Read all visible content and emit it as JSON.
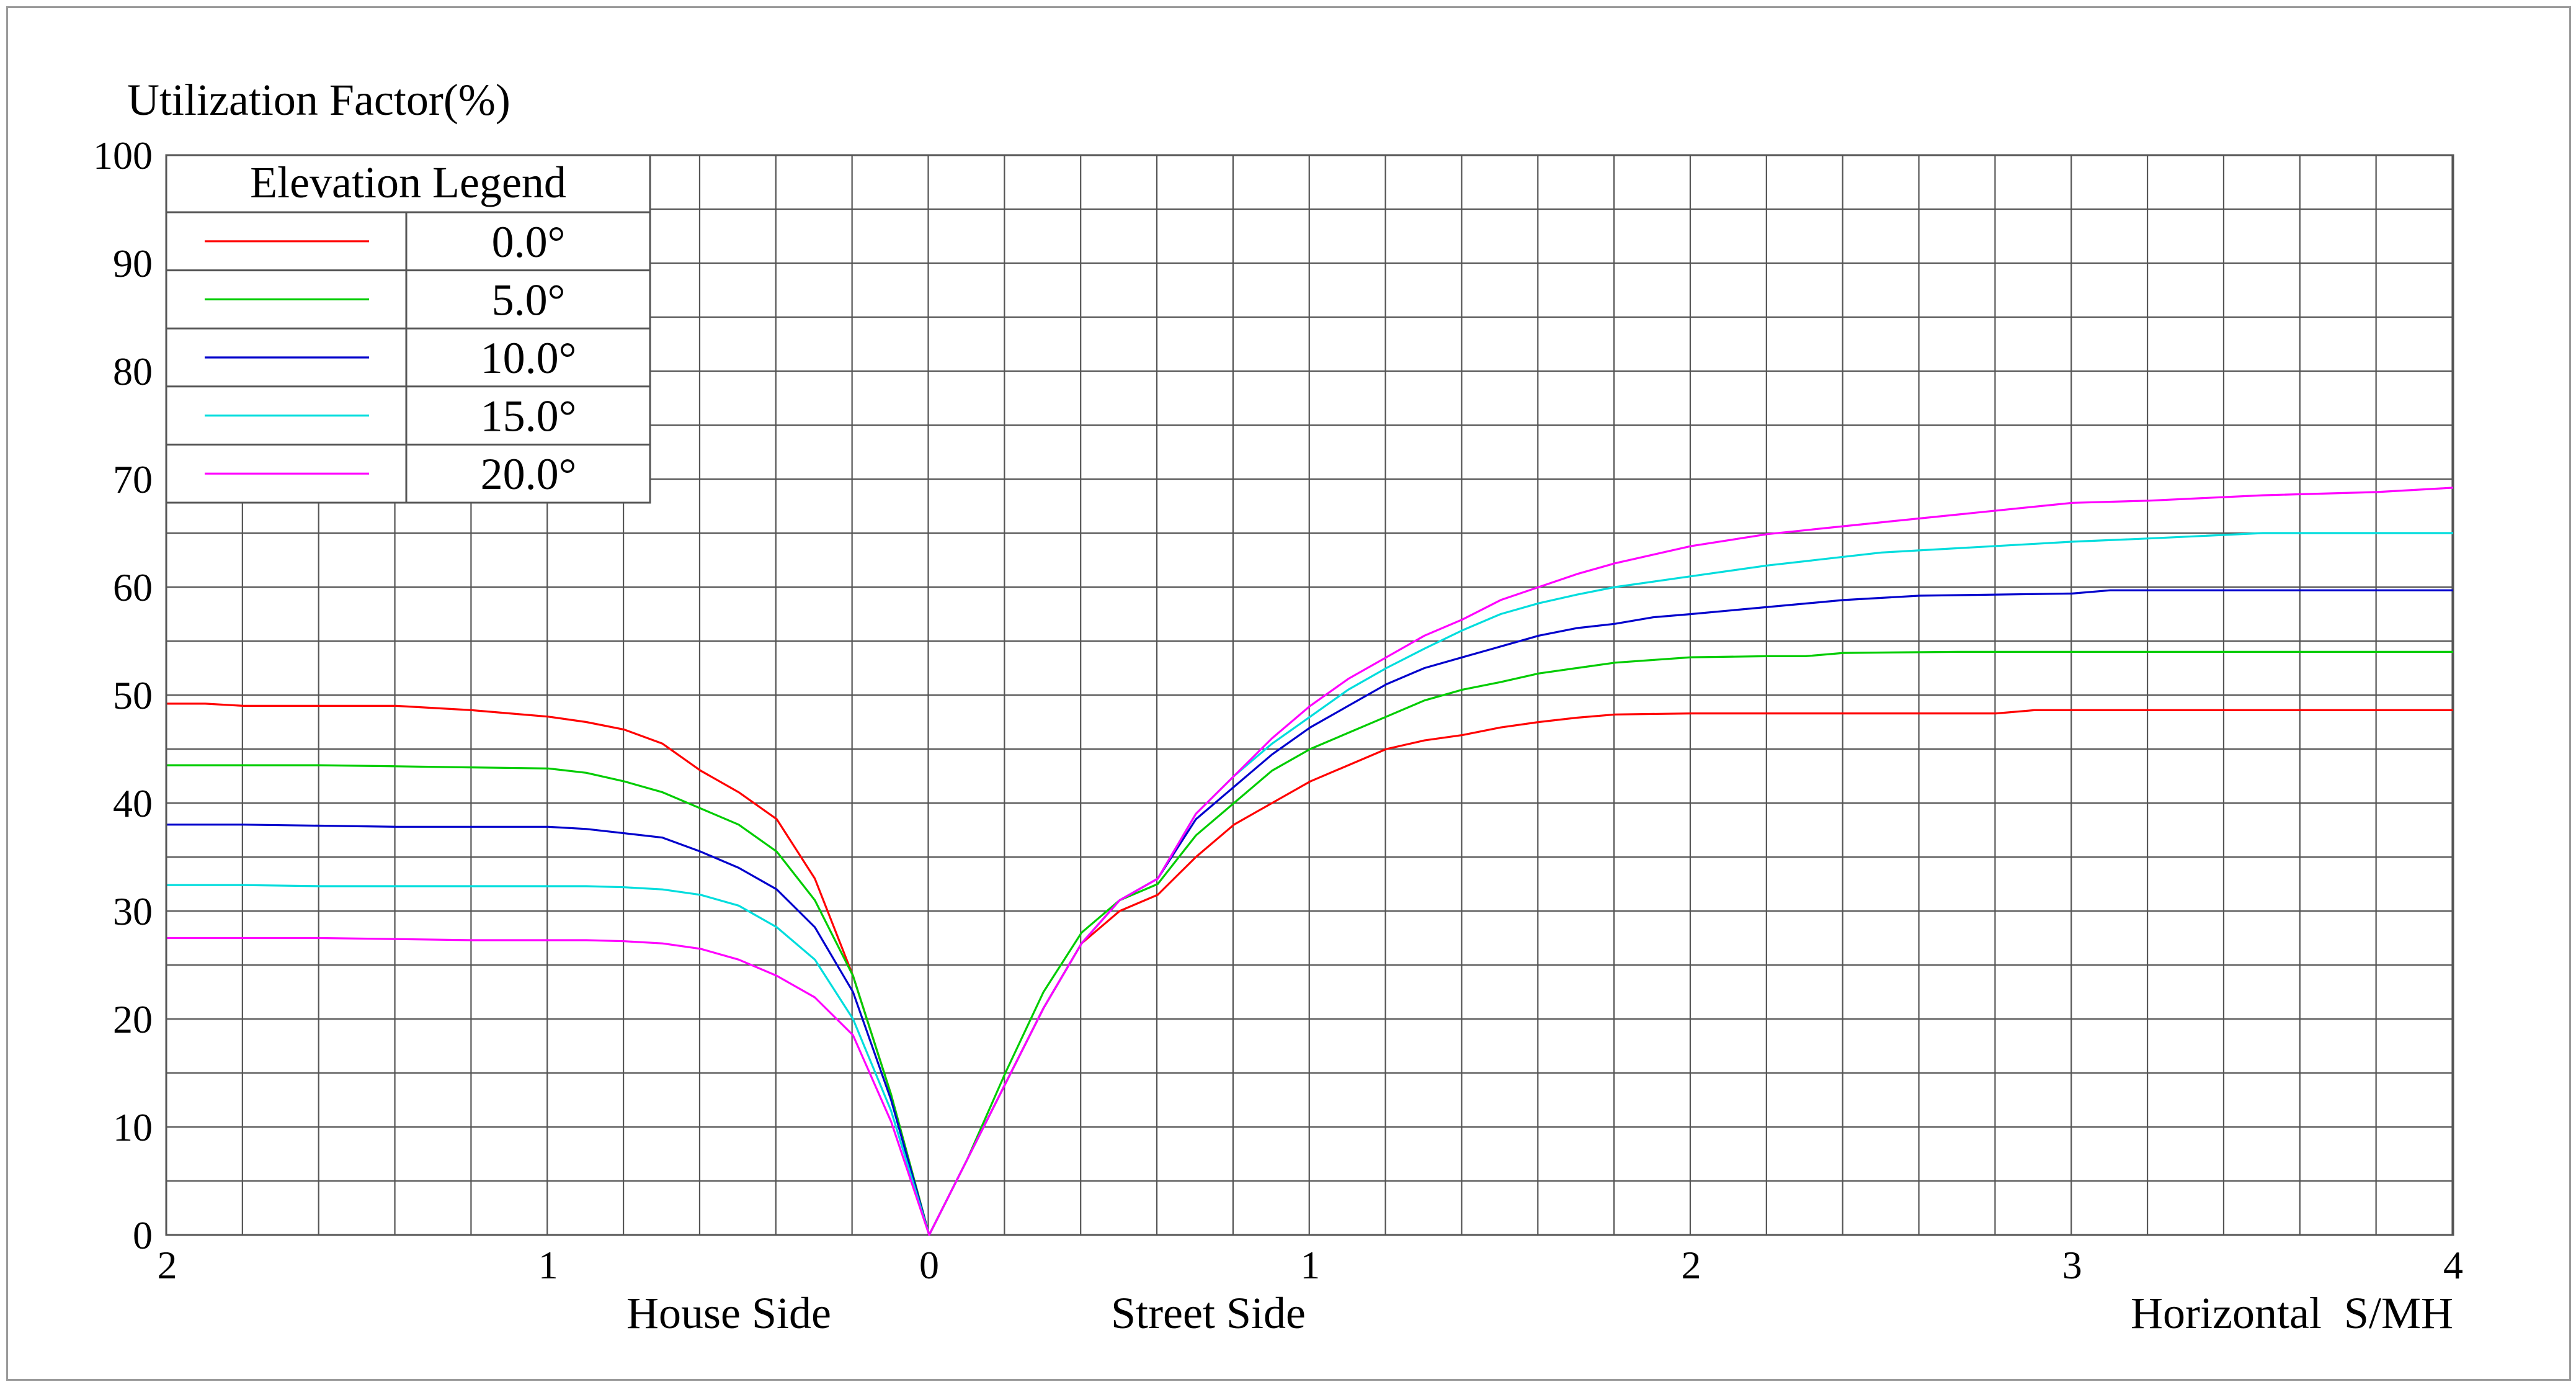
{
  "chart_data": {
    "type": "line",
    "ylabel": "Utilization Factor(%)",
    "ylim": [
      0,
      100
    ],
    "yticks": [
      "0",
      "10",
      "20",
      "30",
      "40",
      "50",
      "60",
      "70",
      "80",
      "90",
      "100"
    ],
    "x_left": {
      "label": "House Side",
      "range": [
        0,
        2
      ],
      "ticks": [
        "2",
        "1",
        "0"
      ]
    },
    "x_right": {
      "labels": [
        "Street Side",
        "Horizontal  S/MH"
      ],
      "range": [
        0,
        4
      ],
      "ticks": [
        "0",
        "1",
        "2",
        "3",
        "4"
      ]
    },
    "grid": true,
    "legend": {
      "title": "Elevation Legend",
      "placement": "top-left"
    },
    "series": [
      {
        "name": "0.0°",
        "color": "#ff0000",
        "house_x": [
          0,
          0.1,
          0.2,
          0.3,
          0.4,
          0.5,
          0.6,
          0.7,
          0.8,
          0.9,
          1.0,
          1.1,
          1.2,
          1.3,
          1.4,
          1.5,
          1.6,
          1.7,
          1.8,
          1.9,
          2.0
        ],
        "house_y": [
          0,
          13,
          24,
          33,
          38.5,
          41,
          43,
          45.5,
          46.8,
          47.5,
          48,
          48.3,
          48.6,
          48.8,
          49,
          49,
          49,
          49,
          49,
          49.2,
          49.2
        ],
        "street_x": [
          0,
          0.1,
          0.2,
          0.3,
          0.4,
          0.5,
          0.6,
          0.7,
          0.8,
          0.9,
          1.0,
          1.1,
          1.2,
          1.3,
          1.4,
          1.5,
          1.6,
          1.7,
          1.8,
          2.0,
          2.4,
          2.8,
          2.9,
          3.0,
          3.5,
          4.0
        ],
        "street_y": [
          0,
          7,
          14,
          21,
          27,
          30,
          31.5,
          35,
          38,
          40,
          42,
          43.5,
          45,
          45.8,
          46.3,
          47,
          47.5,
          47.9,
          48.2,
          48.3,
          48.3,
          48.3,
          48.6,
          48.6,
          48.6,
          48.6
        ]
      },
      {
        "name": "5.0°",
        "color": "#00cc00",
        "house_x": [
          0,
          0.1,
          0.2,
          0.3,
          0.4,
          0.5,
          0.6,
          0.7,
          0.8,
          0.9,
          1.0,
          1.2,
          1.4,
          1.6,
          1.8,
          2.0
        ],
        "house_y": [
          0,
          13,
          24,
          31,
          35.5,
          38,
          39.5,
          41,
          42,
          42.8,
          43.2,
          43.3,
          43.4,
          43.5,
          43.5,
          43.5
        ],
        "street_x": [
          0,
          0.1,
          0.2,
          0.3,
          0.4,
          0.5,
          0.6,
          0.7,
          0.8,
          0.9,
          1.0,
          1.1,
          1.2,
          1.3,
          1.4,
          1.5,
          1.6,
          1.7,
          1.8,
          2.0,
          2.2,
          2.3,
          2.4,
          2.7,
          3.0,
          3.5,
          4.0
        ],
        "street_y": [
          0,
          7,
          15,
          22.5,
          28,
          31,
          32.5,
          37,
          40,
          43,
          45,
          46.5,
          48,
          49.5,
          50.5,
          51.2,
          52,
          52.5,
          53,
          53.5,
          53.6,
          53.6,
          53.9,
          54,
          54,
          54,
          54
        ]
      },
      {
        "name": "10.0°",
        "color": "#0000cc",
        "house_x": [
          0,
          0.1,
          0.2,
          0.3,
          0.4,
          0.5,
          0.6,
          0.7,
          0.8,
          0.9,
          1.0,
          1.2,
          1.4,
          1.6,
          1.8,
          2.0
        ],
        "house_y": [
          0,
          12.5,
          22.5,
          28.5,
          32,
          34,
          35.5,
          36.8,
          37.2,
          37.6,
          37.8,
          37.8,
          37.8,
          37.9,
          38,
          38
        ],
        "street_x": [
          0,
          0.1,
          0.2,
          0.3,
          0.4,
          0.5,
          0.6,
          0.7,
          0.8,
          0.9,
          1.0,
          1.1,
          1.2,
          1.3,
          1.4,
          1.5,
          1.6,
          1.7,
          1.8,
          1.9,
          2.0,
          2.4,
          2.6,
          3.0,
          3.1,
          3.5,
          4.0
        ],
        "street_y": [
          0,
          7,
          14,
          21,
          27,
          31,
          33,
          38.5,
          41.5,
          44.5,
          47,
          49,
          51,
          52.5,
          53.5,
          54.5,
          55.5,
          56.2,
          56.6,
          57.2,
          57.5,
          58.8,
          59.2,
          59.4,
          59.7,
          59.7,
          59.7
        ]
      },
      {
        "name": "15.0°",
        "color": "#00dddd",
        "house_x": [
          0,
          0.1,
          0.2,
          0.3,
          0.4,
          0.5,
          0.6,
          0.7,
          0.8,
          0.9,
          1.0,
          1.2,
          1.4,
          1.6,
          1.8,
          2.0
        ],
        "house_y": [
          0,
          11.5,
          20,
          25.5,
          28.5,
          30.5,
          31.5,
          32,
          32.2,
          32.3,
          32.3,
          32.3,
          32.3,
          32.3,
          32.4,
          32.4
        ],
        "street_x": [
          0,
          0.1,
          0.2,
          0.3,
          0.4,
          0.5,
          0.6,
          0.7,
          0.8,
          0.9,
          1.0,
          1.1,
          1.2,
          1.3,
          1.4,
          1.5,
          1.6,
          1.7,
          1.8,
          2.0,
          2.2,
          2.5,
          3.0,
          3.2,
          3.5,
          4.0
        ],
        "street_y": [
          0,
          7,
          14,
          21,
          27,
          31,
          33,
          39,
          42.5,
          45.5,
          48,
          50.5,
          52.5,
          54.3,
          56,
          57.5,
          58.5,
          59.3,
          60,
          61,
          62,
          63.2,
          64.2,
          64.5,
          65,
          65
        ]
      },
      {
        "name": "20.0°",
        "color": "#ff00ff",
        "house_x": [
          0,
          0.1,
          0.2,
          0.3,
          0.4,
          0.5,
          0.6,
          0.7,
          0.8,
          0.9,
          1.0,
          1.2,
          1.4,
          1.6,
          1.8,
          2.0
        ],
        "house_y": [
          0,
          10.5,
          18.5,
          22,
          24,
          25.5,
          26.5,
          27,
          27.2,
          27.3,
          27.3,
          27.3,
          27.4,
          27.5,
          27.5,
          27.5
        ],
        "street_x": [
          0,
          0.1,
          0.2,
          0.3,
          0.4,
          0.5,
          0.6,
          0.7,
          0.8,
          0.9,
          1.0,
          1.1,
          1.2,
          1.3,
          1.4,
          1.5,
          1.6,
          1.7,
          1.8,
          1.9,
          2.0,
          2.2,
          2.5,
          3.0,
          3.2,
          3.5,
          3.8,
          4.0
        ],
        "street_y": [
          0,
          7,
          14,
          21,
          27,
          31,
          33,
          39,
          42.5,
          46,
          49,
          51.5,
          53.5,
          55.5,
          57,
          58.8,
          60,
          61.2,
          62.2,
          63,
          63.8,
          64.9,
          66,
          67.8,
          68,
          68.5,
          68.8,
          69.2
        ]
      }
    ]
  }
}
